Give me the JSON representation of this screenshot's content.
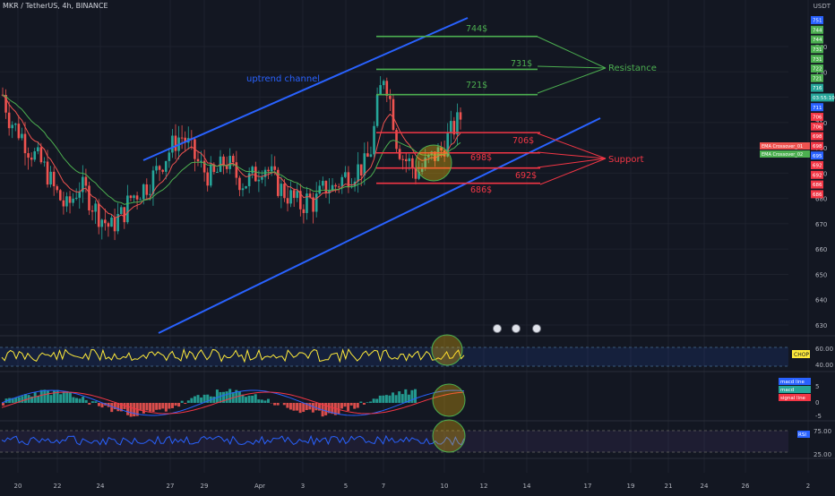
{
  "header": {
    "symbol_line": "MKR / TetherUS, 4h, BINANCE",
    "currency": "USDT"
  },
  "colors": {
    "up": "#26a69a",
    "down": "#ef5350",
    "channel": "#2962ff",
    "resistance": "#4caf50",
    "support": "#f23645",
    "ema1": "#ef5350",
    "ema2": "#4caf50",
    "chop": "#ffeb3b",
    "rsi": "#2962ff",
    "background": "#131722"
  },
  "chart_data": {
    "type": "candlestick",
    "y_ticks": [
      "740",
      "730",
      "720",
      "710",
      "700",
      "690",
      "680",
      "670",
      "660",
      "650",
      "640",
      "630"
    ],
    "ylim": [
      625,
      758
    ],
    "x_ticks": [
      "20",
      "22",
      "24",
      "27",
      "29",
      "Apr",
      "3",
      "5",
      "7",
      "10",
      "12",
      "14",
      "17",
      "19",
      "21",
      "24",
      "26",
      "2"
    ],
    "close_path": [
      721,
      712,
      708,
      705,
      700,
      697,
      694,
      690,
      684,
      680,
      676,
      680,
      685,
      683,
      678,
      674,
      671,
      668,
      672,
      674,
      680,
      682,
      684,
      686,
      690,
      694,
      698,
      702,
      705,
      702,
      697,
      693,
      690,
      688,
      691,
      695,
      692,
      688,
      686,
      688,
      690,
      694,
      690,
      686,
      683,
      681,
      679,
      677,
      680,
      678,
      682,
      685,
      684,
      687,
      689,
      690,
      692,
      693,
      700,
      718,
      730,
      718,
      702,
      696,
      694,
      690,
      692,
      695,
      697,
      699,
      704,
      708,
      712
    ],
    "levels": [
      {
        "label": "744$",
        "value": 744,
        "type": "resistance"
      },
      {
        "label": "731$",
        "value": 731,
        "type": "resistance"
      },
      {
        "label": "721$",
        "value": 721,
        "type": "resistance"
      },
      {
        "label": "706$",
        "value": 706,
        "type": "support"
      },
      {
        "label": "698$",
        "value": 698,
        "type": "support"
      },
      {
        "label": "692$",
        "value": 692,
        "type": "support"
      },
      {
        "label": "686$",
        "value": 686,
        "type": "support"
      }
    ],
    "annotations": {
      "channel": "uptrend channel",
      "resistance": "Resistance",
      "support": "Support"
    },
    "price_tags": [
      {
        "text": "751",
        "color": "#2962ff"
      },
      {
        "text": "744",
        "color": "#4caf50"
      },
      {
        "text": "744",
        "color": "#4caf50"
      },
      {
        "text": "731",
        "color": "#4caf50"
      },
      {
        "text": "731",
        "color": "#4caf50"
      },
      {
        "text": "722",
        "color": "#4caf50"
      },
      {
        "text": "721",
        "color": "#4caf50"
      },
      {
        "text": "716",
        "color": "#26a69a"
      },
      {
        "text": "03:55:10",
        "color": "#26a69a"
      },
      {
        "text": "711",
        "color": "#2962ff"
      },
      {
        "text": "706",
        "color": "#f23645"
      },
      {
        "text": "706",
        "color": "#f23645"
      },
      {
        "text": "698",
        "color": "#f23645"
      },
      {
        "text": "698",
        "color": "#f23645"
      },
      {
        "text": "695",
        "color": "#2962ff"
      },
      {
        "text": "692",
        "color": "#f23645"
      },
      {
        "text": "692",
        "color": "#f23645"
      },
      {
        "text": "686",
        "color": "#f23645"
      },
      {
        "text": "686",
        "color": "#f23645"
      }
    ],
    "indicator_labels": [
      "EMA Crossover_01",
      "EMA Crossover_02"
    ],
    "chop": {
      "label": "CHOP",
      "ticks": [
        "60.00",
        "40.00"
      ]
    },
    "macd": {
      "labels": [
        "macd line",
        "macd",
        "signal line"
      ],
      "ticks": [
        "5",
        "0",
        "-5"
      ]
    },
    "rsi": {
      "label": "RSI",
      "ticks": [
        "75.00",
        "25.00"
      ]
    }
  }
}
